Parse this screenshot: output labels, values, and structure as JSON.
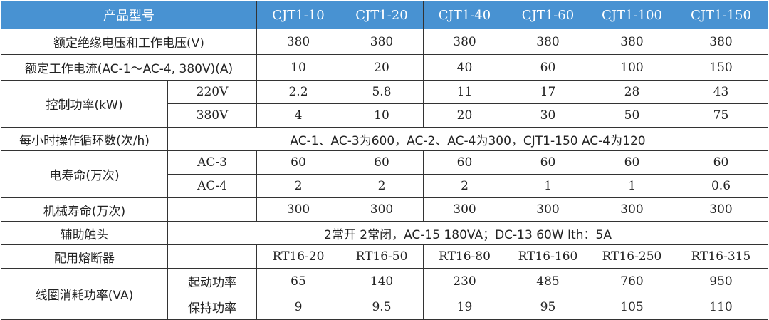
{
  "header": {
    "label": "产品型号",
    "models": [
      "CJT1-10",
      "CJT1-20",
      "CJT1-40",
      "CJT1-60",
      "CJT1-100",
      "CJT1-150"
    ]
  },
  "rated_voltage": {
    "label": "额定绝缘电压和工作电压(V)",
    "values": [
      "380",
      "380",
      "380",
      "380",
      "380",
      "380"
    ]
  },
  "rated_current": {
    "label": "额定工作电流(AC-1～AC-4, 380V)(A)",
    "values": [
      "10",
      "20",
      "40",
      "60",
      "100",
      "150"
    ]
  },
  "control_power": {
    "label": "控制功率(kW)",
    "rows": [
      {
        "sub": "220V",
        "values": [
          "2.2",
          "5.8",
          "11",
          "17",
          "28",
          "43"
        ]
      },
      {
        "sub": "380V",
        "values": [
          "4",
          "10",
          "20",
          "30",
          "50",
          "75"
        ]
      }
    ]
  },
  "ops_per_hour": {
    "label": "每小时操作循环数(次/h)",
    "value": "AC-1、AC-3为600，AC-2、AC-4为300，CJT1-150  AC-4为120"
  },
  "electrical_life": {
    "label": "电寿命(万次)",
    "rows": [
      {
        "sub": "AC-3",
        "values": [
          "60",
          "60",
          "60",
          "60",
          "60",
          "60"
        ]
      },
      {
        "sub": "AC-4",
        "values": [
          "2",
          "2",
          "2",
          "1",
          "1",
          "0.6"
        ]
      }
    ]
  },
  "mechanical_life": {
    "label": "机械寿命(万次)",
    "values": [
      "300",
      "300",
      "300",
      "300",
      "300",
      "300"
    ]
  },
  "aux_contacts": {
    "label": "辅助触头",
    "value": "2常开  2常闭，AC-15  180VA；DC-13  60W  Ith：5A"
  },
  "fuse": {
    "label": "配用熔断器",
    "values": [
      "RT16-20",
      "RT16-50",
      "RT16-80",
      "RT16-160",
      "RT16-250",
      "RT16-315"
    ]
  },
  "coil_power": {
    "label": "线圈消耗功率(VA)",
    "rows": [
      {
        "sub": "起动功率",
        "values": [
          "65",
          "140",
          "230",
          "485",
          "760",
          "950"
        ]
      },
      {
        "sub": "保持功率",
        "values": [
          "9",
          "9.5",
          "19",
          "95",
          "105",
          "110"
        ]
      }
    ]
  },
  "colors": {
    "header_bg": "#4892d2",
    "header_text": "#ffffff"
  }
}
